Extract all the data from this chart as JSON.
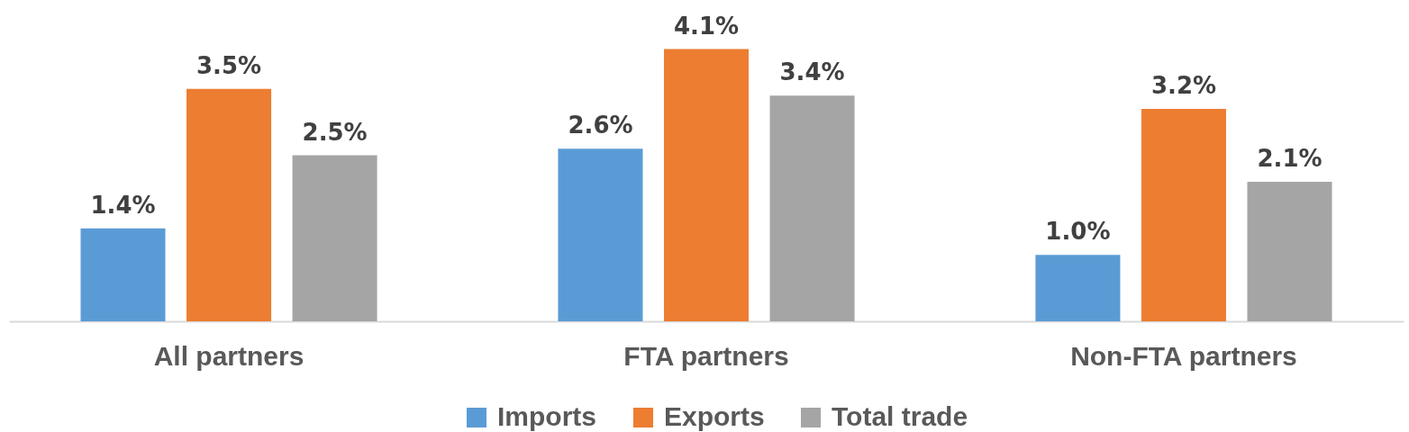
{
  "chart_data": {
    "type": "bar",
    "categories": [
      "All partners",
      "FTA partners",
      "Non-FTA partners"
    ],
    "series": [
      {
        "name": "Imports",
        "color": "#5b9bd5",
        "values": [
          1.4,
          2.6,
          1.0
        ],
        "value_labels": [
          "1.4%",
          "2.6%",
          "1.0%"
        ]
      },
      {
        "name": "Exports",
        "color": "#ed7d31",
        "values": [
          3.5,
          4.1,
          3.2
        ],
        "value_labels": [
          "3.5%",
          "4.1%",
          "3.2%"
        ]
      },
      {
        "name": "Total trade",
        "color": "#a5a5a5",
        "values": [
          2.5,
          3.4,
          2.1
        ],
        "value_labels": [
          "2.5%",
          "3.4%",
          "2.1%"
        ]
      }
    ],
    "legend": "bottom",
    "tick_labels": "x"
  }
}
